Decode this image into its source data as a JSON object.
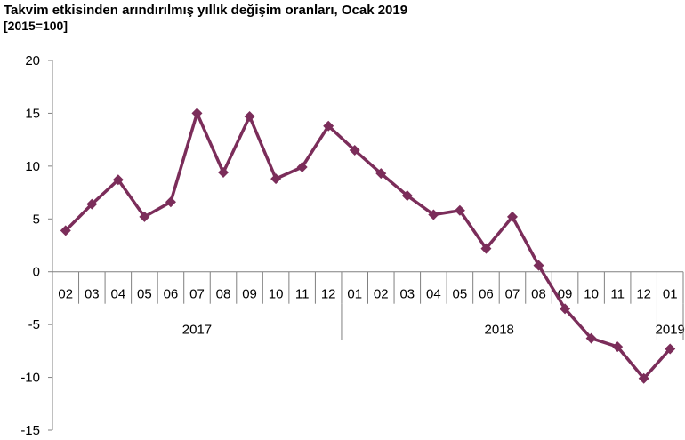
{
  "chart_data": {
    "type": "line",
    "title": "Takvim etkisinden arındırılmış yıllık değişim oranları, Ocak 2019",
    "subtitle": "[2015=100]",
    "xlabel": "",
    "ylabel": "",
    "ylim": [
      -15,
      20
    ],
    "y_ticks": [
      "20",
      "15",
      "10",
      "5",
      "0",
      "-5",
      "-10",
      "-15"
    ],
    "y_tick_values": [
      20,
      15,
      10,
      5,
      0,
      -5,
      -10,
      -15
    ],
    "categories": [
      "02",
      "03",
      "04",
      "05",
      "06",
      "07",
      "08",
      "09",
      "10",
      "11",
      "12",
      "01",
      "02",
      "03",
      "04",
      "05",
      "06",
      "07",
      "08",
      "09",
      "10",
      "11",
      "12",
      "01"
    ],
    "groups": [
      {
        "label": "2017",
        "start": 0,
        "end": 10
      },
      {
        "label": "2018",
        "start": 11,
        "end": 22
      },
      {
        "label": "2019",
        "start": 23,
        "end": 23
      }
    ],
    "series": [
      {
        "values": [
          3.9,
          6.4,
          8.7,
          5.2,
          6.6,
          15.0,
          9.4,
          14.7,
          8.8,
          9.9,
          13.8,
          11.5,
          9.3,
          7.2,
          5.4,
          5.8,
          2.2,
          5.2,
          0.6,
          -3.5,
          -6.3,
          -7.1,
          -10.1,
          -7.3
        ]
      }
    ],
    "line_color": "#7B2D5A",
    "grid": false,
    "legend": "none"
  }
}
